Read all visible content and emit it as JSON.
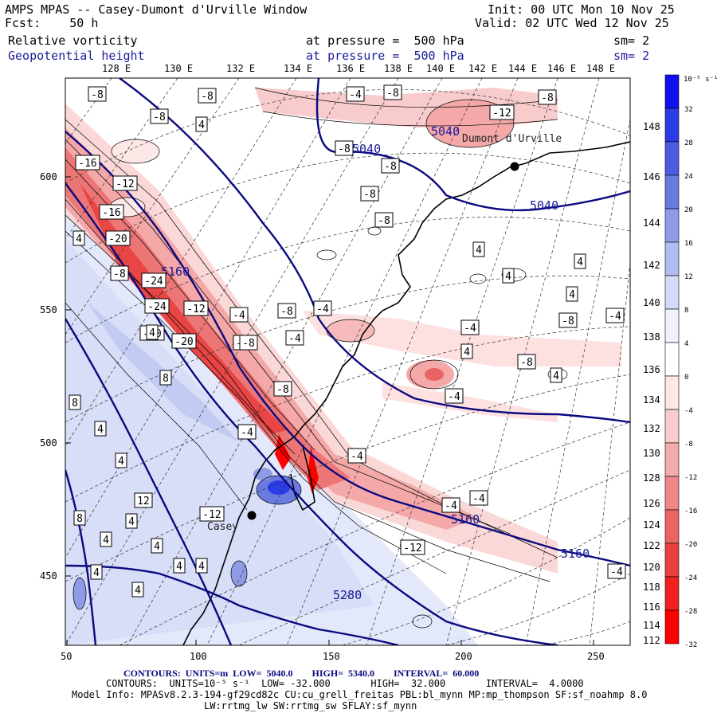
{
  "header": {
    "title": "AMPS MPAS -- Casey-Dumont d'Urville Window",
    "forecast": "Fcst:    50 h",
    "init": "Init: 00 UTC Mon 10 Nov 25",
    "valid": "Valid: 02 UTC Wed 12 Nov 25",
    "field1_name": "Relative vorticity",
    "field1_level": "at pressure =  500 hPa",
    "field1_sm": "sm= 2",
    "field2_name": "Geopotential height",
    "field2_level": "at pressure =  500 hPa",
    "field2_sm": "sm= 2"
  },
  "top_longitudes": [
    "128 E",
    "130 E",
    "132 E",
    "134 E",
    "136 E",
    "138 E",
    "140 E",
    "142 E",
    "144 E",
    "146 E",
    "148 E"
  ],
  "right_longitudes": [
    "148 E",
    "146 E",
    "144 E",
    "142 E",
    "140 E",
    "138 E",
    "136 E",
    "134 E",
    "132 E",
    "130 E",
    "128 E",
    "126 E",
    "124 E",
    "122 E",
    "120 E",
    "118 E",
    "116 E",
    "114 E",
    "112 E"
  ],
  "x_ticks": [
    "50",
    "100",
    "150",
    "200",
    "250"
  ],
  "y_ticks": [
    "600",
    "550",
    "500",
    "450"
  ],
  "colorbar": {
    "unit_label": "10⁻⁵ s⁻¹",
    "labels": [
      "32",
      "28",
      "24",
      "20",
      "16",
      "12",
      "8",
      "4",
      "0",
      "-4",
      "-8",
      "-12",
      "-16",
      "-20",
      "-24",
      "-28",
      "-32"
    ],
    "colors": [
      "#1010f0",
      "#2b3be8",
      "#4a5ce2",
      "#6a7be0",
      "#8e9be6",
      "#b2bcf0",
      "#d4daf8",
      "#f0f0ff",
      "#ffffff",
      "#fde8e8",
      "#f8cccc",
      "#f3aaaa",
      "#ee8888",
      "#ea6464",
      "#e84040",
      "#f02020",
      "#ff0000"
    ],
    "accent_positive": "#1010f0",
    "accent_negative": "#ff0000"
  },
  "places": [
    {
      "name": "Dumont d'Urville"
    },
    {
      "name": "Casey"
    }
  ],
  "height_labels": [
    "5040",
    "5040",
    "5040",
    "5160",
    "5160",
    "5160",
    "5280"
  ],
  "vort_labels": [
    "-8",
    "-8",
    "-8",
    "4",
    "-4",
    "-8",
    "-12",
    "-8",
    "-8",
    "-8",
    "-16",
    "-12",
    "-16",
    "-20",
    "-24",
    "-24",
    "-12",
    "-20",
    "-20",
    "-4",
    "-8",
    "-4",
    "-4",
    "-8",
    "-4",
    "-8",
    "-4",
    "-8",
    "-8",
    "4",
    "4",
    "4",
    "4",
    "4",
    "4",
    "4",
    "4",
    "4",
    "8",
    "8",
    "4",
    "12",
    "4",
    "4",
    "8",
    "4",
    "4",
    "4",
    "4",
    "4",
    "-12",
    "-4",
    "-4",
    "-4",
    "-4",
    "-8",
    "-12",
    "-4",
    "-4",
    "-4",
    "-8",
    "-8"
  ],
  "footer": {
    "line1_a": "CONTOURS:  UNITS=m  LOW=  5040.0        HIGH=  5340.0        INTERVAL=  60.000",
    "line2": "CONTOURS:  UNITS=10⁻⁵ s⁻¹  LOW= -32.000       HIGH=  32.000       INTERVAL=  4.0000",
    "line3": "Model Info: MPASv8.2.3-194-gf29cd82c CU:cu_grell_freitas PBL:bl_mynn MP:mp_thompson SF:sf_noahmp 8.0",
    "line4": "LW:rrtmg_lw SW:rrtmg_sw SFLAY:sf_mynn"
  }
}
